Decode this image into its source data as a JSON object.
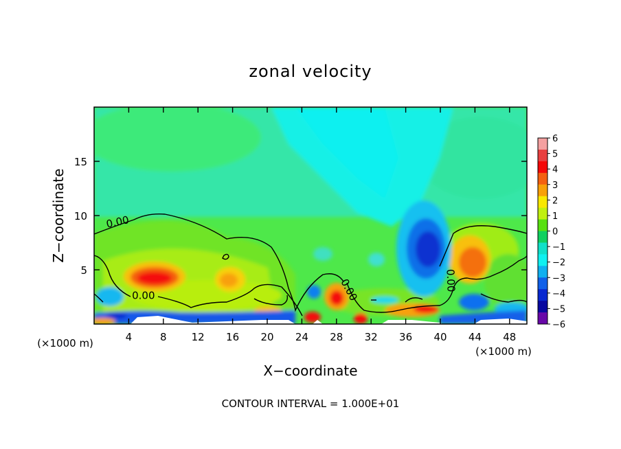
{
  "chart_data": {
    "type": "heatmap",
    "title": "zonal velocity",
    "xlabel": "X−coordinate",
    "ylabel": "Z−coordinate",
    "x_unit_left": "(×1000 m)",
    "x_unit_right": "(×1000 m)",
    "xlim": [
      0,
      50
    ],
    "ylim": [
      0,
      20
    ],
    "x_ticks": [
      4,
      8,
      12,
      16,
      20,
      24,
      28,
      32,
      36,
      40,
      44,
      48
    ],
    "y_ticks": [
      5,
      10,
      15
    ],
    "footer": "CONTOUR INTERVAL = 1.000E+01",
    "colorbar": {
      "ticks": [
        "6",
        "5",
        "4",
        "3",
        "2",
        "1",
        "0",
        "−1",
        "−2",
        "−3",
        "−4",
        "−5",
        "−6"
      ],
      "colors": [
        "#f4a0a0",
        "#e84040",
        "#f40808",
        "#f46010",
        "#f8a008",
        "#f8e800",
        "#c0f010",
        "#58e010",
        "#10d060",
        "#10e0c8",
        "#10f0f0",
        "#10b0f0",
        "#1060e8",
        "#0828d0",
        "#0808a0",
        "#6808a8"
      ]
    },
    "contour_labels": [
      {
        "text": "0.00",
        "x": 2.8,
        "y": 9.1
      },
      {
        "text": "0.00",
        "x": 5.7,
        "y": 2.3
      },
      {
        "text": "0.00",
        "x": 29.1,
        "y": 3.0
      },
      {
        "text": "0.00",
        "x": 40.8,
        "y": 4.0
      }
    ],
    "features": [
      {
        "kind": "max",
        "x": 7,
        "y": 4.3,
        "value": 4.5
      },
      {
        "kind": "max",
        "x": 15,
        "y": 4.5,
        "value": 2.5
      },
      {
        "kind": "max",
        "x": 28,
        "y": 2.6,
        "value": 4
      },
      {
        "kind": "max",
        "x": 43,
        "y": 5.8,
        "value": 3
      },
      {
        "kind": "min",
        "x": 38.2,
        "y": 6.8,
        "value": -4.5
      },
      {
        "kind": "min",
        "x": 37.5,
        "y": 16,
        "value": -2
      },
      {
        "kind": "min",
        "x": 2.5,
        "y": 2.6,
        "value": -3
      },
      {
        "kind": "min",
        "x": 43,
        "y": 2.2,
        "value": -3
      },
      {
        "kind": "min",
        "x": 26,
        "y": 3.1,
        "value": -2.5
      },
      {
        "kind": "max",
        "x": 34,
        "y": 1.7,
        "value": 3
      }
    ]
  }
}
